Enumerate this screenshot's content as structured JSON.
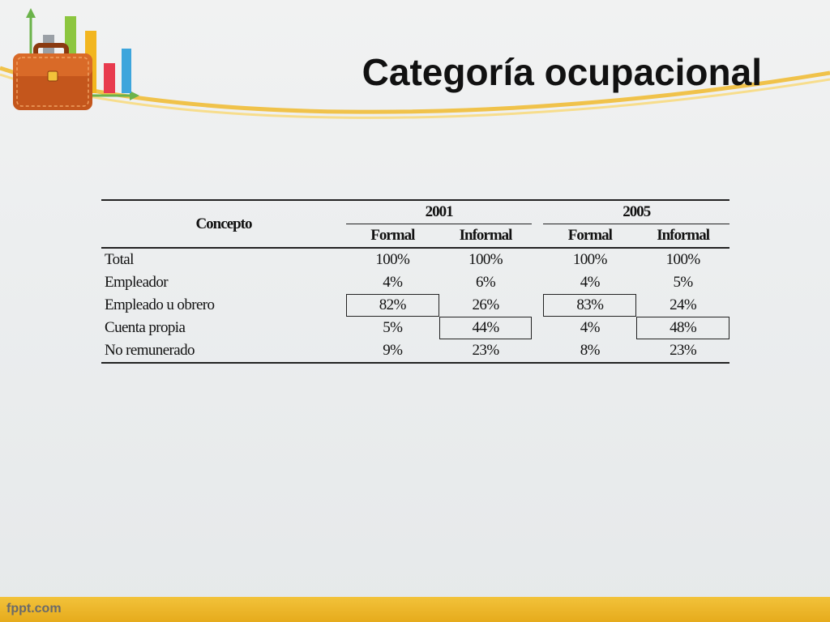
{
  "slide": {
    "title": "Categoría ocupacional",
    "footer": "fppt.com"
  },
  "table": {
    "concept_header": "Concepto",
    "years": [
      "2001",
      "2005"
    ],
    "subheaders": [
      "Formal",
      "Informal",
      "Formal",
      "Informal"
    ],
    "rows": [
      {
        "label": "Total",
        "values": [
          "100%",
          "100%",
          "100%",
          "100%"
        ]
      },
      {
        "label": "Empleador",
        "values": [
          "4%",
          "6%",
          "4%",
          "5%"
        ]
      },
      {
        "label": "Empleado u obrero",
        "values": [
          "82%",
          "26%",
          "83%",
          "24%"
        ]
      },
      {
        "label": "Cuenta propia",
        "values": [
          "5%",
          "44%",
          "4%",
          "48%"
        ]
      },
      {
        "label": "No remunerado",
        "values": [
          "9%",
          "23%",
          "8%",
          "23%"
        ]
      }
    ]
  },
  "colors": {
    "accent_gold": "#e8b020",
    "background": "#eceeef"
  },
  "icons": {
    "logo": "briefcase-with-bar-chart-icon"
  }
}
